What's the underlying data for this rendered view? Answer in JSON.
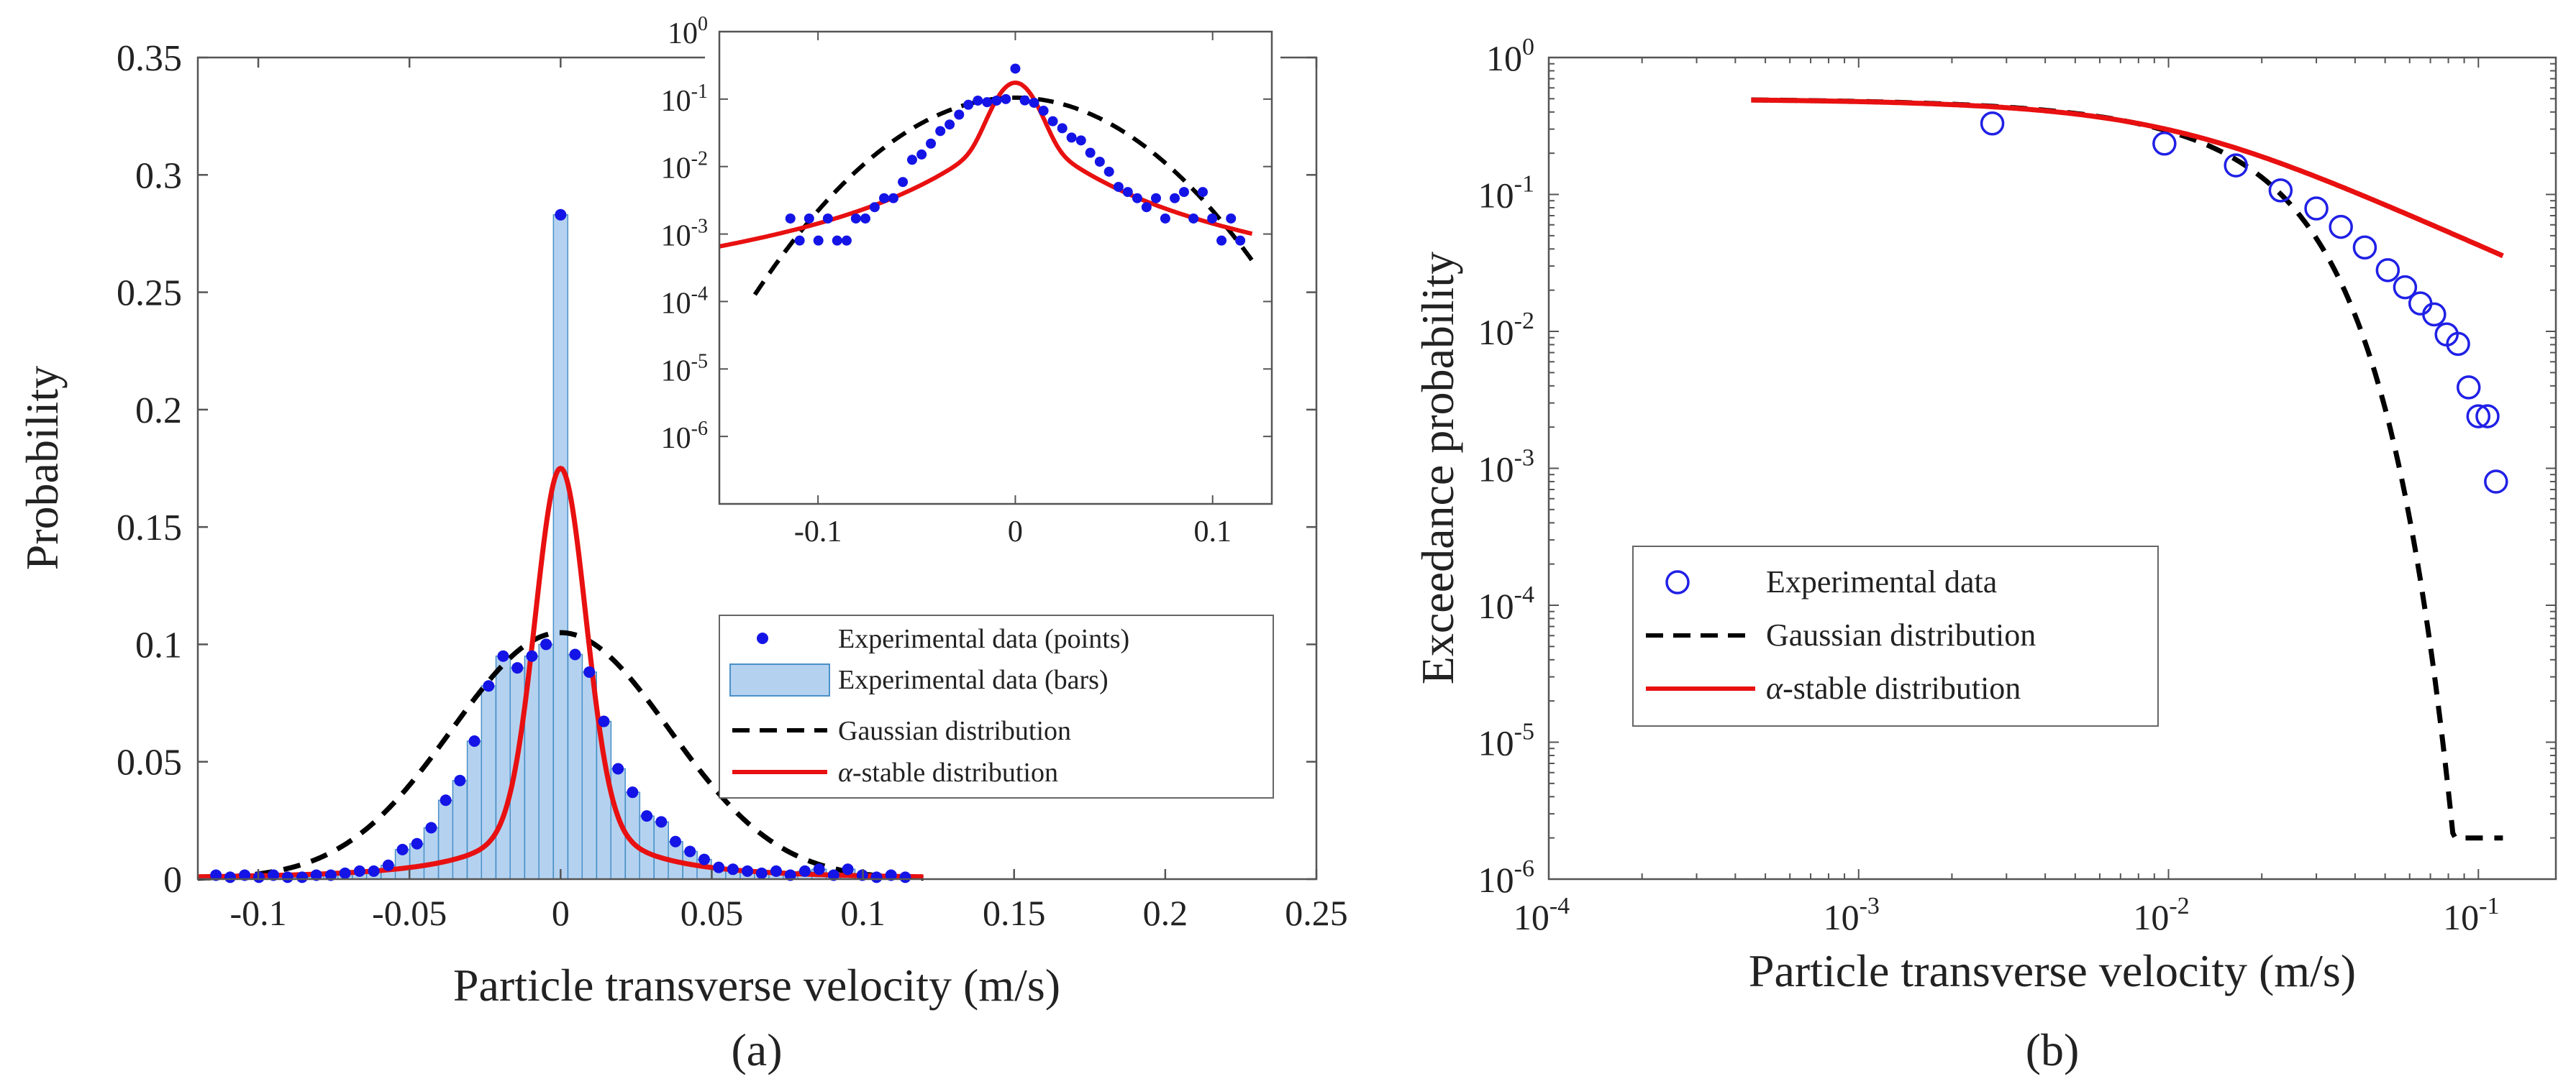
{
  "panels": {
    "a": {
      "caption": "(a)",
      "chart_data": {
        "type": "bar",
        "title": "",
        "xlabel": "Particle transverse velocity (m/s)",
        "ylabel": "Probability",
        "xlim": [
          -0.12,
          0.25
        ],
        "ylim": [
          0,
          0.35
        ],
        "xticks": [
          -0.1,
          -0.05,
          0,
          0.05,
          0.1,
          0.15,
          0.2,
          0.25
        ],
        "xtick_labels": [
          "-0.1",
          "-0.05",
          "0",
          "0.05",
          "0.1",
          "0.15",
          "0.2",
          "0.25"
        ],
        "yticks": [
          0,
          0.05,
          0.1,
          0.15,
          0.2,
          0.25,
          0.3,
          0.35
        ],
        "ytick_labels": [
          "0",
          "0.05",
          "0.1",
          "0.15",
          "0.2",
          "0.25",
          "0.3",
          "0.35"
        ],
        "bar_width": 0.00475,
        "bins": [
          -0.114,
          -0.1093,
          -0.1045,
          -0.0998,
          -0.095,
          -0.0903,
          -0.0855,
          -0.0808,
          -0.076,
          -0.0713,
          -0.0665,
          -0.0618,
          -0.057,
          -0.0523,
          -0.0475,
          -0.0428,
          -0.038,
          -0.0333,
          -0.0285,
          -0.0238,
          -0.019,
          -0.0143,
          -0.0095,
          -0.0048,
          0.0,
          0.0048,
          0.0095,
          0.0143,
          0.019,
          0.0238,
          0.0285,
          0.0333,
          0.038,
          0.0428,
          0.0475,
          0.0523,
          0.057,
          0.0618,
          0.0665,
          0.0713,
          0.076,
          0.0808,
          0.0855,
          0.0903,
          0.095,
          0.0998,
          0.1045,
          0.1093,
          0.114
        ],
        "values": [
          0.0017,
          0.0008,
          0.0017,
          0.0008,
          0.0017,
          0.0008,
          0.0008,
          0.0017,
          0.0017,
          0.0025,
          0.0034,
          0.0034,
          0.0059,
          0.0126,
          0.0151,
          0.0219,
          0.0336,
          0.042,
          0.0588,
          0.0823,
          0.095,
          0.09,
          0.095,
          0.1,
          0.283,
          0.0957,
          0.0882,
          0.0672,
          0.047,
          0.037,
          0.0269,
          0.0244,
          0.016,
          0.0118,
          0.0084,
          0.005,
          0.0042,
          0.0034,
          0.0025,
          0.0034,
          0.0017,
          0.0034,
          0.0042,
          0.0017,
          0.0042,
          0.0017,
          0.0008,
          0.0017,
          0.0008
        ],
        "series": [
          {
            "name": "Experimental data (points)",
            "style": "points",
            "color": "#1414e6"
          },
          {
            "name": "Experimental data (bars)",
            "style": "bars",
            "color": "#b4d2f0",
            "edge": "#4a90c8"
          },
          {
            "name": "Gaussian distribution",
            "style": "dashed",
            "color": "#000000",
            "peak": 0.105,
            "sigma": 0.036
          },
          {
            "name": "α-stable distribution",
            "style": "solid",
            "color": "#e81010",
            "peak": 0.175
          }
        ],
        "legend": {
          "position": "right",
          "labels": [
            "Experimental data (points)",
            "Experimental data (bars)",
            "Gaussian distribution",
            "-stable distribution"
          ],
          "alpha_symbol": "α"
        },
        "inset": {
          "type": "scatter",
          "yscale": "log",
          "xlim": [
            -0.15,
            0.13
          ],
          "ylim_exp": [
            -7,
            0
          ],
          "xticks": [
            -0.1,
            0,
            0.1
          ],
          "xtick_labels": [
            "-0.1",
            "0",
            "0.1"
          ],
          "ytick_base": "10",
          "ytick_exponents": [
            "0",
            "-1",
            "-2",
            "-3",
            "-4",
            "-5",
            "-6"
          ],
          "ytick_values": [
            0,
            -1,
            -2,
            -3,
            -4,
            -5,
            -6
          ]
        }
      }
    },
    "b": {
      "caption": "(b)",
      "chart_data": {
        "type": "scatter",
        "xscale": "log",
        "yscale": "log",
        "xlabel": "Particle transverse velocity (m/s)",
        "ylabel": "Exceedance probability",
        "xlim_exp": [
          -4,
          -0.75
        ],
        "ylim_exp": [
          -6,
          0
        ],
        "x_tick_base": "10",
        "xtick_exponents": [
          "-4",
          "-3",
          "-2",
          "-1"
        ],
        "xtick_values": [
          -4,
          -3,
          -2,
          -1
        ],
        "y_tick_base": "10",
        "ytick_exponents": [
          "0",
          "-1",
          "-2",
          "-3",
          "-4",
          "-5",
          "-6"
        ],
        "ytick_values": [
          0,
          -1,
          -2,
          -3,
          -4,
          -5,
          -6
        ],
        "x": [
          0.0027,
          0.0097,
          0.0165,
          0.023,
          0.03,
          0.036,
          0.043,
          0.051,
          0.058,
          0.065,
          0.072,
          0.079,
          0.086,
          0.093,
          0.1,
          0.107,
          0.114
        ],
        "y": [
          0.33,
          0.235,
          0.163,
          0.107,
          0.079,
          0.058,
          0.041,
          0.028,
          0.021,
          0.016,
          0.0133,
          0.0095,
          0.0081,
          0.0039,
          0.0024,
          0.0024,
          0.0008
        ],
        "series": [
          {
            "name": "Experimental data",
            "style": "open-circles",
            "color": "#2020e6"
          },
          {
            "name": "Gaussian distribution",
            "style": "dashed",
            "color": "#000000"
          },
          {
            "name": "α-stable distribution",
            "style": "solid",
            "color": "#e81010"
          }
        ],
        "legend": {
          "position": "center-left",
          "labels": [
            "Experimental data",
            "Gaussian distribution",
            "-stable distribution"
          ],
          "alpha_symbol": "α"
        }
      }
    }
  }
}
